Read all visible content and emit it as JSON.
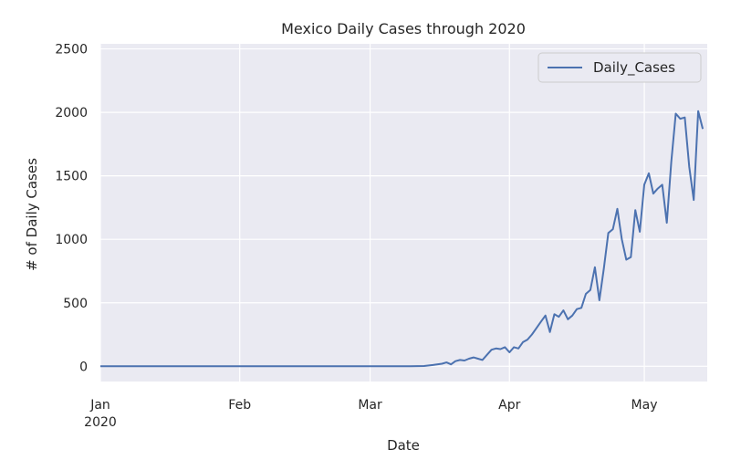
{
  "chart_data": {
    "type": "line",
    "title": "Mexico Daily Cases through 2020",
    "xlabel": "Date",
    "ylabel": "# of Daily Cases",
    "xlim": [
      "2020-01-01",
      "2020-05-15"
    ],
    "ylim": [
      -120,
      2540
    ],
    "yticks": [
      0,
      500,
      1000,
      1500,
      2000,
      2500
    ],
    "xticks": [
      {
        "date": "2020-01-01",
        "label": "Jan",
        "sublabel": "2020"
      },
      {
        "date": "2020-02-01",
        "label": "Feb"
      },
      {
        "date": "2020-03-01",
        "label": "Mar"
      },
      {
        "date": "2020-04-01",
        "label": "Apr"
      },
      {
        "date": "2020-05-01",
        "label": "May"
      }
    ],
    "grid": true,
    "legend": "top-right",
    "series": [
      {
        "name": "Daily_Cases",
        "color": "#4c72b0",
        "x": [
          "2020-01-01",
          "2020-03-01",
          "2020-03-05",
          "2020-03-10",
          "2020-03-13",
          "2020-03-15",
          "2020-03-17",
          "2020-03-18",
          "2020-03-19",
          "2020-03-20",
          "2020-03-21",
          "2020-03-22",
          "2020-03-23",
          "2020-03-24",
          "2020-03-25",
          "2020-03-26",
          "2020-03-27",
          "2020-03-28",
          "2020-03-29",
          "2020-03-30",
          "2020-03-31",
          "2020-04-01",
          "2020-04-02",
          "2020-04-03",
          "2020-04-04",
          "2020-04-05",
          "2020-04-06",
          "2020-04-07",
          "2020-04-08",
          "2020-04-09",
          "2020-04-10",
          "2020-04-11",
          "2020-04-12",
          "2020-04-13",
          "2020-04-14",
          "2020-04-15",
          "2020-04-16",
          "2020-04-17",
          "2020-04-18",
          "2020-04-19",
          "2020-04-20",
          "2020-04-21",
          "2020-04-22",
          "2020-04-23",
          "2020-04-24",
          "2020-04-25",
          "2020-04-26",
          "2020-04-27",
          "2020-04-28",
          "2020-04-29",
          "2020-04-30",
          "2020-05-01",
          "2020-05-02",
          "2020-05-03",
          "2020-05-04",
          "2020-05-05",
          "2020-05-06",
          "2020-05-07",
          "2020-05-08",
          "2020-05-09",
          "2020-05-10",
          "2020-05-11",
          "2020-05-12",
          "2020-05-13",
          "2020-05-14"
        ],
        "values": [
          0,
          0,
          0,
          1,
          2,
          10,
          20,
          30,
          15,
          40,
          50,
          45,
          60,
          70,
          60,
          50,
          90,
          130,
          140,
          135,
          150,
          110,
          150,
          140,
          190,
          210,
          250,
          300,
          350,
          400,
          270,
          410,
          390,
          440,
          370,
          400,
          450,
          460,
          570,
          600,
          780,
          520,
          770,
          1050,
          1080,
          1240,
          1000,
          840,
          860,
          1230,
          1060,
          1430,
          1520,
          1360,
          1400,
          1430,
          1130,
          1610,
          1990,
          1950,
          1960,
          1570,
          1310,
          2010,
          1870
        ]
      }
    ]
  }
}
